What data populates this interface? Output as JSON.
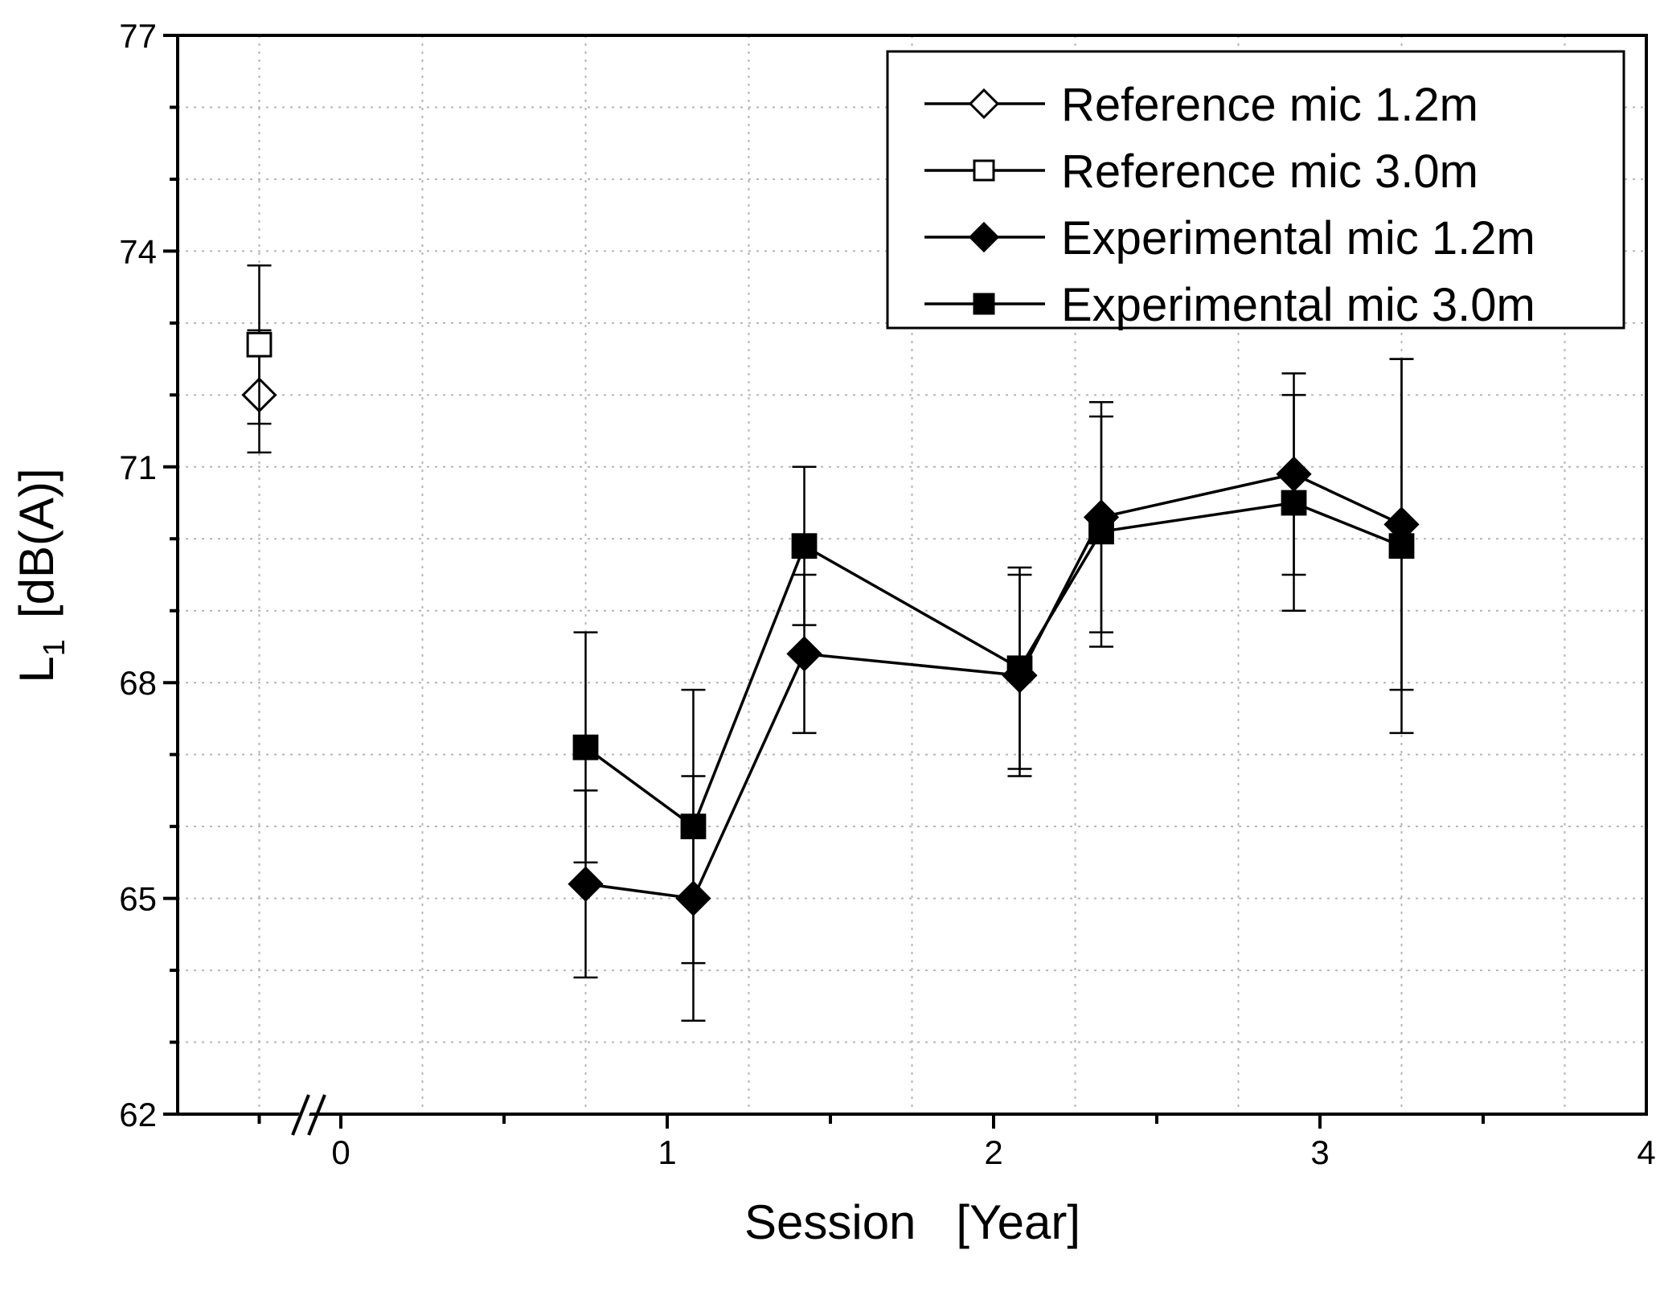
{
  "chart_data": {
    "type": "scatter",
    "xlabel": "Session   [Year]",
    "ylabel_main": "L",
    "ylabel_sub": "1",
    "ylabel_unit": "[dB(A)]",
    "xlim": [
      -0.5,
      4
    ],
    "ylim": [
      62,
      77
    ],
    "x_ticks": [
      "0",
      "1",
      "2",
      "3",
      "4"
    ],
    "y_ticks": [
      "62",
      "65",
      "68",
      "71",
      "74",
      "77"
    ],
    "grid": true,
    "axis_break": "x near 0",
    "legend_position": "top-right",
    "series": [
      {
        "name": "Reference mic 1.2m",
        "marker": "diamond-open",
        "connected": false,
        "points": [
          {
            "x": -0.25,
            "y": 72.0,
            "err_low": 71.2,
            "err_high": 72.9
          }
        ]
      },
      {
        "name": "Reference mic 3.0m",
        "marker": "square-open",
        "connected": false,
        "points": [
          {
            "x": -0.25,
            "y": 72.7,
            "err_low": 71.6,
            "err_high": 73.8
          }
        ]
      },
      {
        "name": "Experimental mic 1.2m",
        "marker": "diamond-filled",
        "connected": true,
        "points": [
          {
            "x": 0.75,
            "y": 65.2,
            "err_low": 63.9,
            "err_high": 66.5
          },
          {
            "x": 1.08,
            "y": 65.0,
            "err_low": 63.3,
            "err_high": 66.7
          },
          {
            "x": 1.42,
            "y": 68.4,
            "err_low": 67.3,
            "err_high": 69.5
          },
          {
            "x": 2.08,
            "y": 68.1,
            "err_low": 66.7,
            "err_high": 69.5
          },
          {
            "x": 2.33,
            "y": 70.3,
            "err_low": 68.7,
            "err_high": 71.9
          },
          {
            "x": 2.92,
            "y": 70.9,
            "err_low": 69.5,
            "err_high": 72.3
          },
          {
            "x": 3.25,
            "y": 70.2,
            "err_low": 67.9,
            "err_high": 72.5
          }
        ]
      },
      {
        "name": "Experimental mic 3.0m",
        "marker": "square-filled",
        "connected": true,
        "points": [
          {
            "x": 0.75,
            "y": 67.1,
            "err_low": 65.5,
            "err_high": 68.7
          },
          {
            "x": 1.08,
            "y": 66.0,
            "err_low": 64.1,
            "err_high": 67.9
          },
          {
            "x": 1.42,
            "y": 69.9,
            "err_low": 68.8,
            "err_high": 71.0
          },
          {
            "x": 2.08,
            "y": 68.2,
            "err_low": 66.8,
            "err_high": 69.6
          },
          {
            "x": 2.33,
            "y": 70.1,
            "err_low": 68.5,
            "err_high": 71.7
          },
          {
            "x": 2.92,
            "y": 70.5,
            "err_low": 69.0,
            "err_high": 72.0
          },
          {
            "x": 3.25,
            "y": 69.9,
            "err_low": 67.3,
            "err_high": 72.5
          }
        ]
      }
    ]
  }
}
